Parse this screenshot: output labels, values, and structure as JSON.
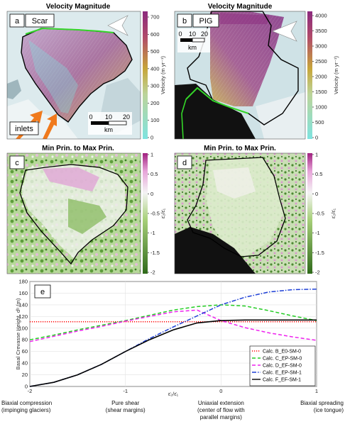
{
  "panels": {
    "a": {
      "letter": "a",
      "title": "Velocity Magnitude",
      "name": "Scar",
      "inlets_label": "inlets",
      "scale_ticks": [
        "0",
        "10",
        "20"
      ],
      "scale_unit": "km",
      "colorbar_ticks": [
        "700",
        "600",
        "500",
        "400",
        "300",
        "200",
        "100",
        "0"
      ],
      "colorbar_label": "Velocity (m yr⁻¹)"
    },
    "b": {
      "letter": "b",
      "title": "Velocity Magnitude",
      "name": "PIG",
      "scale_ticks": [
        "0",
        "10",
        "20"
      ],
      "scale_unit": "km",
      "colorbar_ticks": [
        "4000",
        "3500",
        "3000",
        "2500",
        "2000",
        "1500",
        "1000",
        "500",
        "0"
      ],
      "colorbar_label": "Velocity (m yr⁻¹)"
    },
    "c": {
      "letter": "c",
      "title": "Min Prin. to Max Prin.",
      "colorbar_ticks": [
        "1",
        "0.5",
        "0",
        "-0.5",
        "-1",
        "-1.5",
        "-2"
      ],
      "colorbar_label": "ε̇₂/ε̇₁"
    },
    "d": {
      "letter": "d",
      "title": "Min Prin. to Max Prin.",
      "colorbar_ticks": [
        "1",
        "0.5",
        "0",
        "-0.5",
        "-1",
        "-1.5",
        "-2"
      ],
      "colorbar_label": "ε̇₂/ε̇₁"
    },
    "e": {
      "letter": "e"
    }
  },
  "colors": {
    "velocity_low": "#7fe3e0",
    "velocity_mid": "#c7a63a",
    "velocity_high": "#8b2a7e",
    "strain_high": "#a1207f",
    "strain_mid": "#f4f4f4",
    "strain_low": "#2f6a1a",
    "outline": "#000000",
    "front": "#34d629"
  },
  "chart_data": {
    "type": "line",
    "ylabel": "Basal Crevasse Height, dᵇ (m)",
    "xlabel": "ε̇₂/ε̇₁",
    "xlim": [
      -2,
      1
    ],
    "ylim": [
      0,
      180
    ],
    "xticks": [
      "-2",
      "-1",
      "0",
      "1"
    ],
    "yticks": [
      "0",
      "20",
      "40",
      "60",
      "80",
      "100",
      "120",
      "140",
      "160",
      "180"
    ],
    "grid": true,
    "legend_position": "lower-right",
    "series": [
      {
        "name": "Calc. B_E0-SM-0",
        "color": "#ff0000",
        "dash": "dotted",
        "x": [
          -2,
          -1.5,
          -1,
          -0.5,
          0,
          0.5,
          1
        ],
        "y": [
          111,
          111,
          111,
          111,
          111,
          111,
          111
        ]
      },
      {
        "name": "Calc. C_EP-SM-0",
        "color": "#22cc22",
        "dash": "dashed",
        "x": [
          -2,
          -1.75,
          -1.5,
          -1.25,
          -1,
          -0.75,
          -0.5,
          -0.25,
          0,
          0.25,
          0.5,
          0.75,
          1
        ],
        "y": [
          80,
          88,
          97,
          105,
          113,
          122,
          131,
          137,
          140,
          138,
          130,
          121,
          113
        ]
      },
      {
        "name": "Calc. D_EF-SM-0",
        "color": "#ee22ee",
        "dash": "dashed",
        "x": [
          -2,
          -1.75,
          -1.5,
          -1.25,
          -1,
          -0.75,
          -0.5,
          -0.25,
          0,
          0.25,
          0.5,
          0.75,
          1
        ],
        "y": [
          77,
          86,
          95,
          103,
          112,
          120,
          128,
          131,
          113,
          101,
          92,
          85,
          79
        ]
      },
      {
        "name": "Calc. E_EP-SM-1",
        "color": "#1d3fd6",
        "dash": "dashdot",
        "x": [
          -2,
          -1.75,
          -1.5,
          -1.25,
          -1,
          -0.75,
          -0.5,
          -0.25,
          0,
          0.25,
          0.5,
          0.75,
          1
        ],
        "y": [
          0,
          7,
          20,
          38,
          60,
          82,
          102,
          121,
          140,
          153,
          162,
          166,
          167
        ]
      },
      {
        "name": "Calc. F_EF-SM-1",
        "color": "#000000",
        "dash": "solid",
        "x": [
          -2,
          -1.75,
          -1.5,
          -1.25,
          -1,
          -0.75,
          -0.5,
          -0.25,
          0,
          0.25,
          0.5,
          0.75,
          1
        ],
        "y": [
          0,
          7,
          20,
          38,
          60,
          80,
          97,
          109,
          113,
          114,
          114,
          114,
          114
        ]
      }
    ],
    "regime_labels": [
      {
        "x": -2,
        "line1": "Biaxial compression",
        "line2": "(impinging glaciers)",
        "line3": ""
      },
      {
        "x": -1,
        "line1": "Pure shear",
        "line2": "(shear margins)",
        "line3": ""
      },
      {
        "x": 0,
        "line1": "Uniaxial extension",
        "line2": "(center of flow with",
        "line3": "parallel margins)"
      },
      {
        "x": 1,
        "line1": "Biaxial spreading",
        "line2": "(ice tongue)",
        "line3": ""
      }
    ]
  }
}
